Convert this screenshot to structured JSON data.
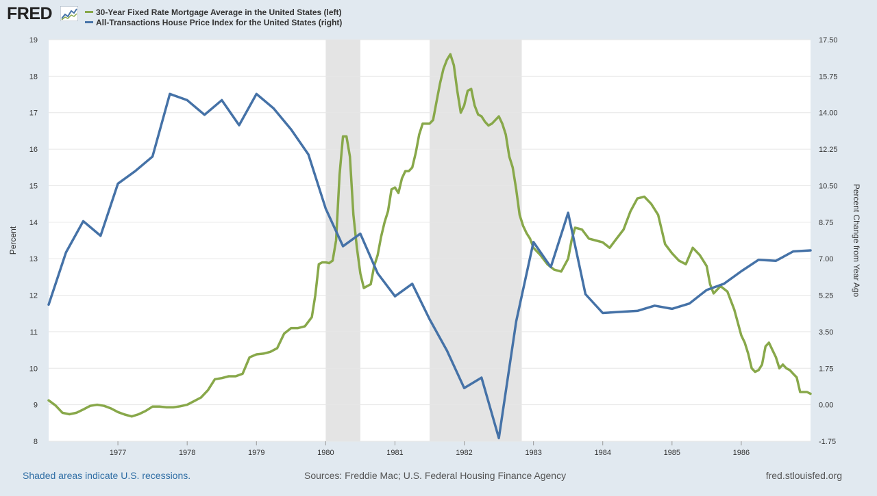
{
  "header": {
    "logo": "FRED",
    "logo_icon": "line-graph-icon"
  },
  "legend": [
    {
      "label": "30-Year Fixed Rate Mortgage Average in the United States (left)",
      "color": "#88a84a"
    },
    {
      "label": "All-Transactions House Price Index for the United States (right)",
      "color": "#4572a7"
    }
  ],
  "footer": {
    "note": "Shaded areas indicate U.S. recessions.",
    "sources": "Sources: Freddie Mac; U.S. Federal Housing Finance Agency",
    "url": "fred.stlouisfed.org"
  },
  "chart_data": {
    "type": "line",
    "x_axis": {
      "type": "time",
      "range": [
        1976.0,
        1987.0
      ],
      "ticks": [
        "1977",
        "1978",
        "1979",
        "1980",
        "1981",
        "1982",
        "1983",
        "1984",
        "1985",
        "1986"
      ]
    },
    "y_left": {
      "label": "Percent",
      "range": [
        8,
        19
      ],
      "ticks": [
        "8",
        "9",
        "10",
        "11",
        "12",
        "13",
        "14",
        "15",
        "16",
        "17",
        "18",
        "19"
      ]
    },
    "y_right": {
      "label": "Percent Change from Year Ago",
      "range": [
        -1.75,
        17.5
      ],
      "ticks": [
        "-1.75",
        "0.00",
        "1.75",
        "3.50",
        "5.25",
        "7.00",
        "8.75",
        "10.50",
        "12.25",
        "14.00",
        "15.75",
        "17.50"
      ]
    },
    "grid": true,
    "recessions": [
      [
        1980.0,
        1980.5
      ],
      [
        1981.5,
        1982.83
      ]
    ],
    "series": [
      {
        "name": "30-Year Fixed Rate Mortgage Average in the United States (left)",
        "axis": "left",
        "color": "#88a84a",
        "points": [
          [
            1976.0,
            9.12
          ],
          [
            1976.1,
            8.98
          ],
          [
            1976.2,
            8.78
          ],
          [
            1976.3,
            8.74
          ],
          [
            1976.4,
            8.78
          ],
          [
            1976.5,
            8.87
          ],
          [
            1976.6,
            8.97
          ],
          [
            1976.7,
            9.0
          ],
          [
            1976.8,
            8.97
          ],
          [
            1976.9,
            8.9
          ],
          [
            1977.0,
            8.8
          ],
          [
            1977.1,
            8.73
          ],
          [
            1977.2,
            8.68
          ],
          [
            1977.3,
            8.74
          ],
          [
            1977.4,
            8.83
          ],
          [
            1977.5,
            8.95
          ],
          [
            1977.6,
            8.95
          ],
          [
            1977.7,
            8.93
          ],
          [
            1977.8,
            8.93
          ],
          [
            1977.9,
            8.96
          ],
          [
            1978.0,
            9.0
          ],
          [
            1978.1,
            9.1
          ],
          [
            1978.2,
            9.2
          ],
          [
            1978.3,
            9.4
          ],
          [
            1978.4,
            9.7
          ],
          [
            1978.5,
            9.73
          ],
          [
            1978.6,
            9.78
          ],
          [
            1978.7,
            9.78
          ],
          [
            1978.8,
            9.85
          ],
          [
            1978.9,
            10.3
          ],
          [
            1979.0,
            10.38
          ],
          [
            1979.1,
            10.4
          ],
          [
            1979.2,
            10.45
          ],
          [
            1979.3,
            10.55
          ],
          [
            1979.4,
            10.95
          ],
          [
            1979.5,
            11.1
          ],
          [
            1979.6,
            11.1
          ],
          [
            1979.7,
            11.15
          ],
          [
            1979.8,
            11.4
          ],
          [
            1979.85,
            12.0
          ],
          [
            1979.9,
            12.85
          ],
          [
            1979.95,
            12.9
          ],
          [
            1980.0,
            12.9
          ],
          [
            1980.05,
            12.88
          ],
          [
            1980.1,
            12.95
          ],
          [
            1980.15,
            13.5
          ],
          [
            1980.2,
            15.3
          ],
          [
            1980.25,
            16.35
          ],
          [
            1980.3,
            16.35
          ],
          [
            1980.35,
            15.8
          ],
          [
            1980.4,
            14.2
          ],
          [
            1980.45,
            13.3
          ],
          [
            1980.5,
            12.6
          ],
          [
            1980.55,
            12.2
          ],
          [
            1980.6,
            12.25
          ],
          [
            1980.65,
            12.3
          ],
          [
            1980.7,
            12.8
          ],
          [
            1980.75,
            13.1
          ],
          [
            1980.8,
            13.6
          ],
          [
            1980.85,
            14.0
          ],
          [
            1980.9,
            14.3
          ],
          [
            1980.95,
            14.9
          ],
          [
            1981.0,
            14.95
          ],
          [
            1981.05,
            14.8
          ],
          [
            1981.1,
            15.2
          ],
          [
            1981.15,
            15.4
          ],
          [
            1981.2,
            15.4
          ],
          [
            1981.25,
            15.5
          ],
          [
            1981.3,
            15.9
          ],
          [
            1981.35,
            16.4
          ],
          [
            1981.4,
            16.7
          ],
          [
            1981.45,
            16.7
          ],
          [
            1981.5,
            16.7
          ],
          [
            1981.55,
            16.8
          ],
          [
            1981.6,
            17.3
          ],
          [
            1981.65,
            17.8
          ],
          [
            1981.7,
            18.2
          ],
          [
            1981.75,
            18.45
          ],
          [
            1981.8,
            18.6
          ],
          [
            1981.85,
            18.3
          ],
          [
            1981.9,
            17.6
          ],
          [
            1981.95,
            17.0
          ],
          [
            1982.0,
            17.2
          ],
          [
            1982.05,
            17.6
          ],
          [
            1982.1,
            17.65
          ],
          [
            1982.15,
            17.2
          ],
          [
            1982.2,
            16.95
          ],
          [
            1982.25,
            16.9
          ],
          [
            1982.3,
            16.75
          ],
          [
            1982.35,
            16.65
          ],
          [
            1982.4,
            16.7
          ],
          [
            1982.45,
            16.8
          ],
          [
            1982.5,
            16.9
          ],
          [
            1982.55,
            16.7
          ],
          [
            1982.6,
            16.4
          ],
          [
            1982.65,
            15.8
          ],
          [
            1982.7,
            15.5
          ],
          [
            1982.75,
            14.9
          ],
          [
            1982.8,
            14.2
          ],
          [
            1982.85,
            13.9
          ],
          [
            1982.9,
            13.7
          ],
          [
            1982.95,
            13.55
          ],
          [
            1983.0,
            13.3
          ],
          [
            1983.1,
            13.1
          ],
          [
            1983.2,
            12.85
          ],
          [
            1983.3,
            12.7
          ],
          [
            1983.4,
            12.65
          ],
          [
            1983.5,
            13.0
          ],
          [
            1983.55,
            13.5
          ],
          [
            1983.6,
            13.85
          ],
          [
            1983.7,
            13.8
          ],
          [
            1983.8,
            13.55
          ],
          [
            1983.9,
            13.5
          ],
          [
            1984.0,
            13.45
          ],
          [
            1984.1,
            13.3
          ],
          [
            1984.2,
            13.55
          ],
          [
            1984.3,
            13.8
          ],
          [
            1984.4,
            14.3
          ],
          [
            1984.5,
            14.65
          ],
          [
            1984.6,
            14.7
          ],
          [
            1984.7,
            14.5
          ],
          [
            1984.8,
            14.2
          ],
          [
            1984.9,
            13.4
          ],
          [
            1985.0,
            13.15
          ],
          [
            1985.1,
            12.95
          ],
          [
            1985.2,
            12.85
          ],
          [
            1985.3,
            13.3
          ],
          [
            1985.4,
            13.1
          ],
          [
            1985.5,
            12.8
          ],
          [
            1985.55,
            12.3
          ],
          [
            1985.6,
            12.05
          ],
          [
            1985.7,
            12.25
          ],
          [
            1985.8,
            12.1
          ],
          [
            1985.9,
            11.6
          ],
          [
            1986.0,
            10.9
          ],
          [
            1986.05,
            10.7
          ],
          [
            1986.1,
            10.4
          ],
          [
            1986.15,
            10.0
          ],
          [
            1986.2,
            9.9
          ],
          [
            1986.25,
            9.95
          ],
          [
            1986.3,
            10.1
          ],
          [
            1986.35,
            10.6
          ],
          [
            1986.4,
            10.7
          ],
          [
            1986.45,
            10.5
          ],
          [
            1986.5,
            10.3
          ],
          [
            1986.55,
            10.0
          ],
          [
            1986.6,
            10.1
          ],
          [
            1986.65,
            10.0
          ],
          [
            1986.7,
            9.95
          ],
          [
            1986.75,
            9.85
          ],
          [
            1986.8,
            9.75
          ],
          [
            1986.85,
            9.35
          ],
          [
            1986.9,
            9.35
          ],
          [
            1986.95,
            9.35
          ],
          [
            1987.0,
            9.3
          ]
        ]
      },
      {
        "name": "All-Transactions House Price Index for the United States (right)",
        "axis": "right",
        "color": "#4572a7",
        "points": [
          [
            1976.0,
            4.8
          ],
          [
            1976.25,
            7.3
          ],
          [
            1976.5,
            8.8
          ],
          [
            1976.75,
            8.1
          ],
          [
            1977.0,
            10.6
          ],
          [
            1977.25,
            11.2
          ],
          [
            1977.5,
            11.9
          ],
          [
            1977.75,
            14.9
          ],
          [
            1978.0,
            14.6
          ],
          [
            1978.25,
            13.9
          ],
          [
            1978.5,
            14.6
          ],
          [
            1978.75,
            13.4
          ],
          [
            1979.0,
            14.9
          ],
          [
            1979.25,
            14.2
          ],
          [
            1979.5,
            13.2
          ],
          [
            1979.75,
            12.0
          ],
          [
            1980.0,
            9.4
          ],
          [
            1980.25,
            7.6
          ],
          [
            1980.5,
            8.2
          ],
          [
            1980.75,
            6.3
          ],
          [
            1981.0,
            5.2
          ],
          [
            1981.25,
            5.8
          ],
          [
            1981.5,
            4.1
          ],
          [
            1981.75,
            2.6
          ],
          [
            1982.0,
            0.8
          ],
          [
            1982.25,
            1.3
          ],
          [
            1982.5,
            -1.6
          ],
          [
            1982.75,
            4.0
          ],
          [
            1983.0,
            7.8
          ],
          [
            1983.25,
            6.6
          ],
          [
            1983.5,
            9.2
          ],
          [
            1983.75,
            5.3
          ],
          [
            1984.0,
            4.4
          ],
          [
            1984.25,
            4.45
          ],
          [
            1984.5,
            4.5
          ],
          [
            1984.75,
            4.75
          ],
          [
            1985.0,
            4.6
          ],
          [
            1985.25,
            4.85
          ],
          [
            1985.5,
            5.5
          ],
          [
            1985.75,
            5.8
          ],
          [
            1986.0,
            6.4
          ],
          [
            1986.25,
            6.95
          ],
          [
            1986.5,
            6.9
          ],
          [
            1986.75,
            7.35
          ],
          [
            1987.0,
            7.4
          ]
        ]
      }
    ]
  }
}
